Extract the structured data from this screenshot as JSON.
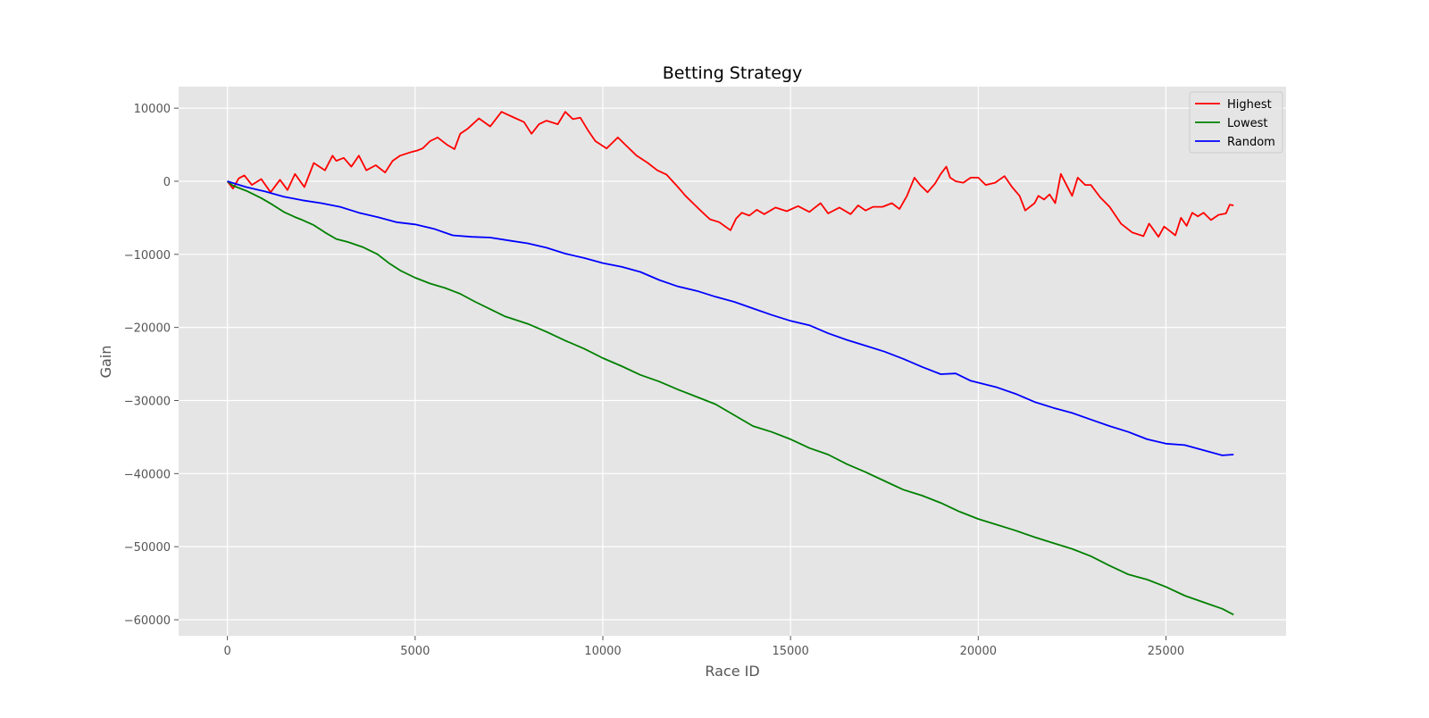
{
  "chart_data": {
    "type": "line",
    "title": "Betting Strategy",
    "xlabel": "Race ID",
    "ylabel": "Gain",
    "xlim": [
      -1300,
      28200
    ],
    "ylim": [
      -62200,
      12950
    ],
    "x_ticks": [
      0,
      5000,
      10000,
      15000,
      20000,
      25000
    ],
    "x_tick_labels": [
      "0",
      "5000",
      "10000",
      "15000",
      "20000",
      "25000"
    ],
    "y_ticks": [
      10000,
      0,
      -10000,
      -20000,
      -30000,
      -40000,
      -50000,
      -60000
    ],
    "y_tick_labels": [
      "10000",
      "0",
      "−10000",
      "−20000",
      "−30000",
      "−40000",
      "−50000",
      "−60000"
    ],
    "grid": true,
    "legend_position": "top-right",
    "series": [
      {
        "name": "Highest",
        "color": "#ff0000",
        "x": [
          0,
          150,
          300,
          450,
          650,
          900,
          1150,
          1400,
          1600,
          1800,
          2050,
          2300,
          2600,
          2800,
          2900,
          3100,
          3300,
          3500,
          3700,
          3950,
          4200,
          4400,
          4600,
          4900,
          5050,
          5200,
          5400,
          5600,
          5850,
          6050,
          6200,
          6400,
          6700,
          7000,
          7300,
          7600,
          7900,
          8100,
          8300,
          8500,
          8800,
          9000,
          9200,
          9400,
          9600,
          9800,
          10100,
          10400,
          10600,
          10900,
          11200,
          11450,
          11700,
          12000,
          12200,
          12400,
          12600,
          12850,
          13100,
          13400,
          13550,
          13700,
          13900,
          14100,
          14300,
          14600,
          14900,
          15200,
          15500,
          15800,
          16000,
          16300,
          16600,
          16800,
          17000,
          17200,
          17450,
          17700,
          17900,
          18100,
          18300,
          18450,
          18650,
          18850,
          19000,
          19150,
          19250,
          19400,
          19600,
          19800,
          20000,
          20200,
          20450,
          20700,
          20900,
          21100,
          21250,
          21500,
          21600,
          21750,
          21900,
          22050,
          22200,
          22400,
          22500,
          22650,
          22850,
          23000,
          23250,
          23500,
          23800,
          24100,
          24400,
          24550,
          24650,
          24800,
          24950,
          25100,
          25250,
          25400,
          25550,
          25700,
          25850,
          26000,
          26200,
          26400,
          26600,
          26700,
          26800
        ],
        "values": [
          0,
          -1000,
          400,
          800,
          -500,
          300,
          -1500,
          200,
          -1200,
          1000,
          -800,
          2500,
          1500,
          3500,
          2800,
          3200,
          2000,
          3500,
          1500,
          2200,
          1200,
          2800,
          3500,
          4000,
          4200,
          4500,
          5500,
          6000,
          5000,
          4400,
          6500,
          7200,
          8600,
          7500,
          9500,
          8800,
          8100,
          6500,
          7800,
          8300,
          7800,
          9500,
          8500,
          8700,
          7000,
          5500,
          4500,
          6000,
          5000,
          3500,
          2500,
          1500,
          900,
          -800,
          -2000,
          -3000,
          -4000,
          -5200,
          -5600,
          -6700,
          -5100,
          -4300,
          -4700,
          -3900,
          -4500,
          -3600,
          -4100,
          -3400,
          -4200,
          -3000,
          -4400,
          -3600,
          -4500,
          -3300,
          -4000,
          -3500,
          -3500,
          -3000,
          -3800,
          -2000,
          500,
          -500,
          -1500,
          -300,
          1000,
          2000,
          500,
          0,
          -200,
          500,
          500,
          -500,
          -200,
          700,
          -800,
          -2000,
          -4000,
          -3000,
          -2000,
          -2500,
          -1800,
          -3000,
          1000,
          -1000,
          -2000,
          500,
          -500,
          -500,
          -2200,
          -3500,
          -5800,
          -7000,
          -7500,
          -5800,
          -6500,
          -7600,
          -6200,
          -6800,
          -7400,
          -5000,
          -6100,
          -4300,
          -4800,
          -4300,
          -5300,
          -4600,
          -4400,
          -3200,
          -3300
        ]
      },
      {
        "name": "Lowest",
        "color": "#008000",
        "x": [
          0,
          150,
          500,
          900,
          1200,
          1500,
          1800,
          2000,
          2300,
          2600,
          2900,
          3200,
          3600,
          4000,
          4300,
          4600,
          5000,
          5400,
          5800,
          6200,
          6600,
          7000,
          7400,
          8000,
          8500,
          9000,
          9500,
          10000,
          10500,
          11000,
          11500,
          12000,
          12500,
          13000,
          13500,
          14000,
          14500,
          15000,
          15500,
          16000,
          16500,
          17000,
          17500,
          18000,
          18500,
          19000,
          19500,
          20000,
          20500,
          21000,
          21500,
          22000,
          22500,
          23000,
          23500,
          24000,
          24500,
          25000,
          25500,
          26000,
          26500,
          26800
        ],
        "values": [
          0,
          -600,
          -1300,
          -2300,
          -3200,
          -4200,
          -4900,
          -5300,
          -6000,
          -7000,
          -7900,
          -8300,
          -9000,
          -10000,
          -11200,
          -12200,
          -13200,
          -14000,
          -14600,
          -15400,
          -16500,
          -17500,
          -18500,
          -19500,
          -20600,
          -21800,
          -22900,
          -24200,
          -25300,
          -26500,
          -27400,
          -28500,
          -29500,
          -30500,
          -32000,
          -33500,
          -34300,
          -35300,
          -36500,
          -37400,
          -38700,
          -39800,
          -41000,
          -42200,
          -43000,
          -44000,
          -45200,
          -46200,
          -47000,
          -47800,
          -48700,
          -49500,
          -50300,
          -51300,
          -52600,
          -53800,
          -54500,
          -55500,
          -56700,
          -57600,
          -58500,
          -59300
        ]
      },
      {
        "name": "Random",
        "color": "#0000ff",
        "x": [
          0,
          500,
          1000,
          1500,
          2000,
          2500,
          3000,
          3500,
          4000,
          4500,
          5000,
          5500,
          6000,
          6500,
          7000,
          7500,
          8000,
          8500,
          9000,
          9500,
          10000,
          10500,
          11000,
          11500,
          12000,
          12500,
          13000,
          13500,
          14000,
          14500,
          15000,
          15500,
          16000,
          16500,
          17000,
          17500,
          18000,
          18500,
          19000,
          19400,
          19800,
          20500,
          21000,
          21500,
          22000,
          22500,
          23000,
          23500,
          24000,
          24500,
          25000,
          25500,
          26000,
          26500,
          26800
        ],
        "values": [
          0,
          -800,
          -1400,
          -2100,
          -2600,
          -3000,
          -3500,
          -4300,
          -4900,
          -5600,
          -5900,
          -6500,
          -7400,
          -7600,
          -7700,
          -8100,
          -8500,
          -9100,
          -9900,
          -10500,
          -11200,
          -11700,
          -12400,
          -13500,
          -14400,
          -15000,
          -15800,
          -16500,
          -17400,
          -18300,
          -19100,
          -19700,
          -20800,
          -21700,
          -22500,
          -23300,
          -24300,
          -25400,
          -26400,
          -26300,
          -27300,
          -28200,
          -29100,
          -30200,
          -31000,
          -31700,
          -32600,
          -33500,
          -34300,
          -35300,
          -35900,
          -36100,
          -36800,
          -37500,
          -37400
        ]
      }
    ]
  }
}
